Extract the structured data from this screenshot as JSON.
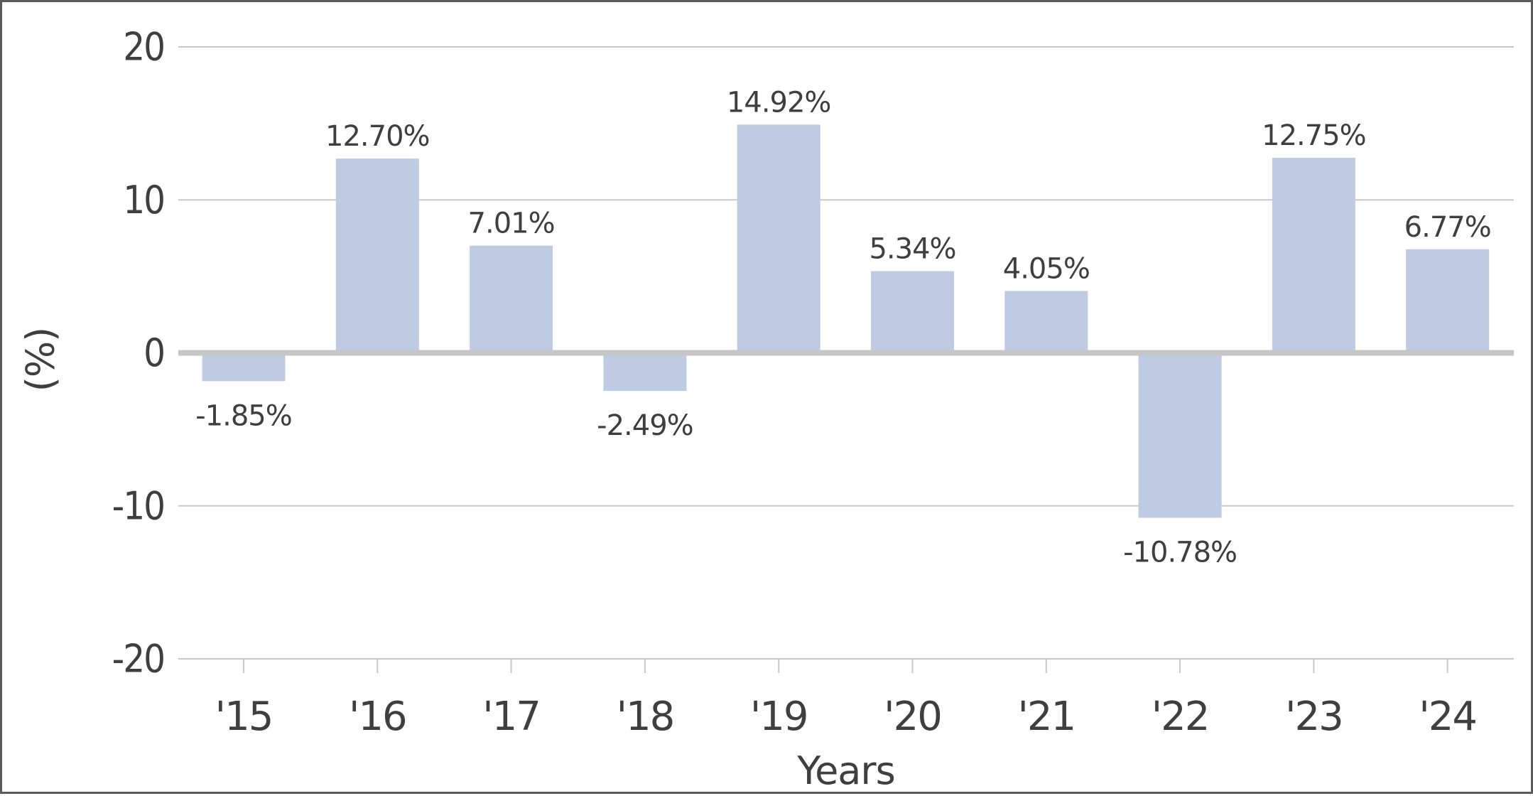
{
  "chart_data": {
    "type": "bar",
    "categories": [
      "'15",
      "'16",
      "'17",
      "'18",
      "'19",
      "'20",
      "'21",
      "'22",
      "'23",
      "'24"
    ],
    "values": [
      -1.85,
      12.7,
      7.01,
      -2.49,
      14.92,
      5.34,
      4.05,
      -10.78,
      12.75,
      6.77
    ],
    "data_labels": [
      "-1.85%",
      "12.70%",
      "7.01%",
      "-2.49%",
      "14.92%",
      "5.34%",
      "4.05%",
      "-10.78%",
      "12.75%",
      "6.77%"
    ],
    "xlabel": "Years",
    "ylabel": "(%)",
    "ylim": [
      -20,
      20
    ],
    "yticks": [
      20,
      10,
      0,
      -10,
      -20
    ],
    "ytick_labels": [
      "20",
      "10",
      "0",
      "-10",
      "-20"
    ],
    "grid": true,
    "legend": "none",
    "colors": {
      "bar": "#bfcbe3",
      "grid": "#c9c9c9",
      "zero_line": "#c6c6c6",
      "text": "#3f3f3f",
      "frame": "#5b5b5b"
    }
  }
}
